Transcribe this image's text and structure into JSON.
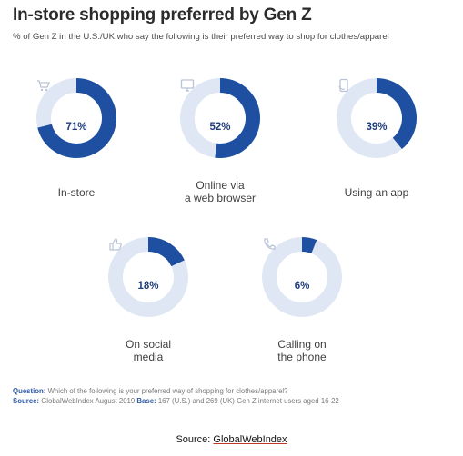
{
  "title": "In-store shopping preferred by Gen Z",
  "subtitle": "% of Gen Z in the U.S./UK who say the following is their preferred way to shop for clothes/apparel",
  "colors": {
    "filled": "#1e4fa0",
    "track": "#dfe7f4",
    "icon": "#b8c3d8",
    "pct_text": "#1f3d7a"
  },
  "chart_data": {
    "type": "pie",
    "title": "In-store shopping preferred by Gen Z",
    "unit": "%",
    "items": [
      {
        "label": "In-store",
        "value": 71,
        "display": "71%",
        "icon": "cart-icon"
      },
      {
        "label": "Online via a web browser",
        "line1": "Online via",
        "line2": "a web browser",
        "value": 52,
        "display": "52%",
        "icon": "monitor-icon"
      },
      {
        "label": "Using an app",
        "value": 39,
        "display": "39%",
        "icon": "phone-app-icon"
      },
      {
        "label": "On social media",
        "line1": "On social",
        "line2": "media",
        "value": 18,
        "display": "18%",
        "icon": "thumbs-up-icon"
      },
      {
        "label": "Calling on the phone",
        "line1": "Calling on",
        "line2": "the phone",
        "value": 6,
        "display": "6%",
        "icon": "telephone-icon"
      }
    ]
  },
  "footer": {
    "question_label": "Question:",
    "question_text": "Which of the following is your preferred way of shopping for clothes/apparel?",
    "source_label": "Source:",
    "source_text": "GlobalWebIndex August 2019",
    "base_label": "Base:",
    "base_text": "167 (U.S.) and 269 (UK) Gen Z internet users aged 16-22"
  },
  "source_line": {
    "prefix": "Source:",
    "link": "GlobalWebIndex"
  }
}
